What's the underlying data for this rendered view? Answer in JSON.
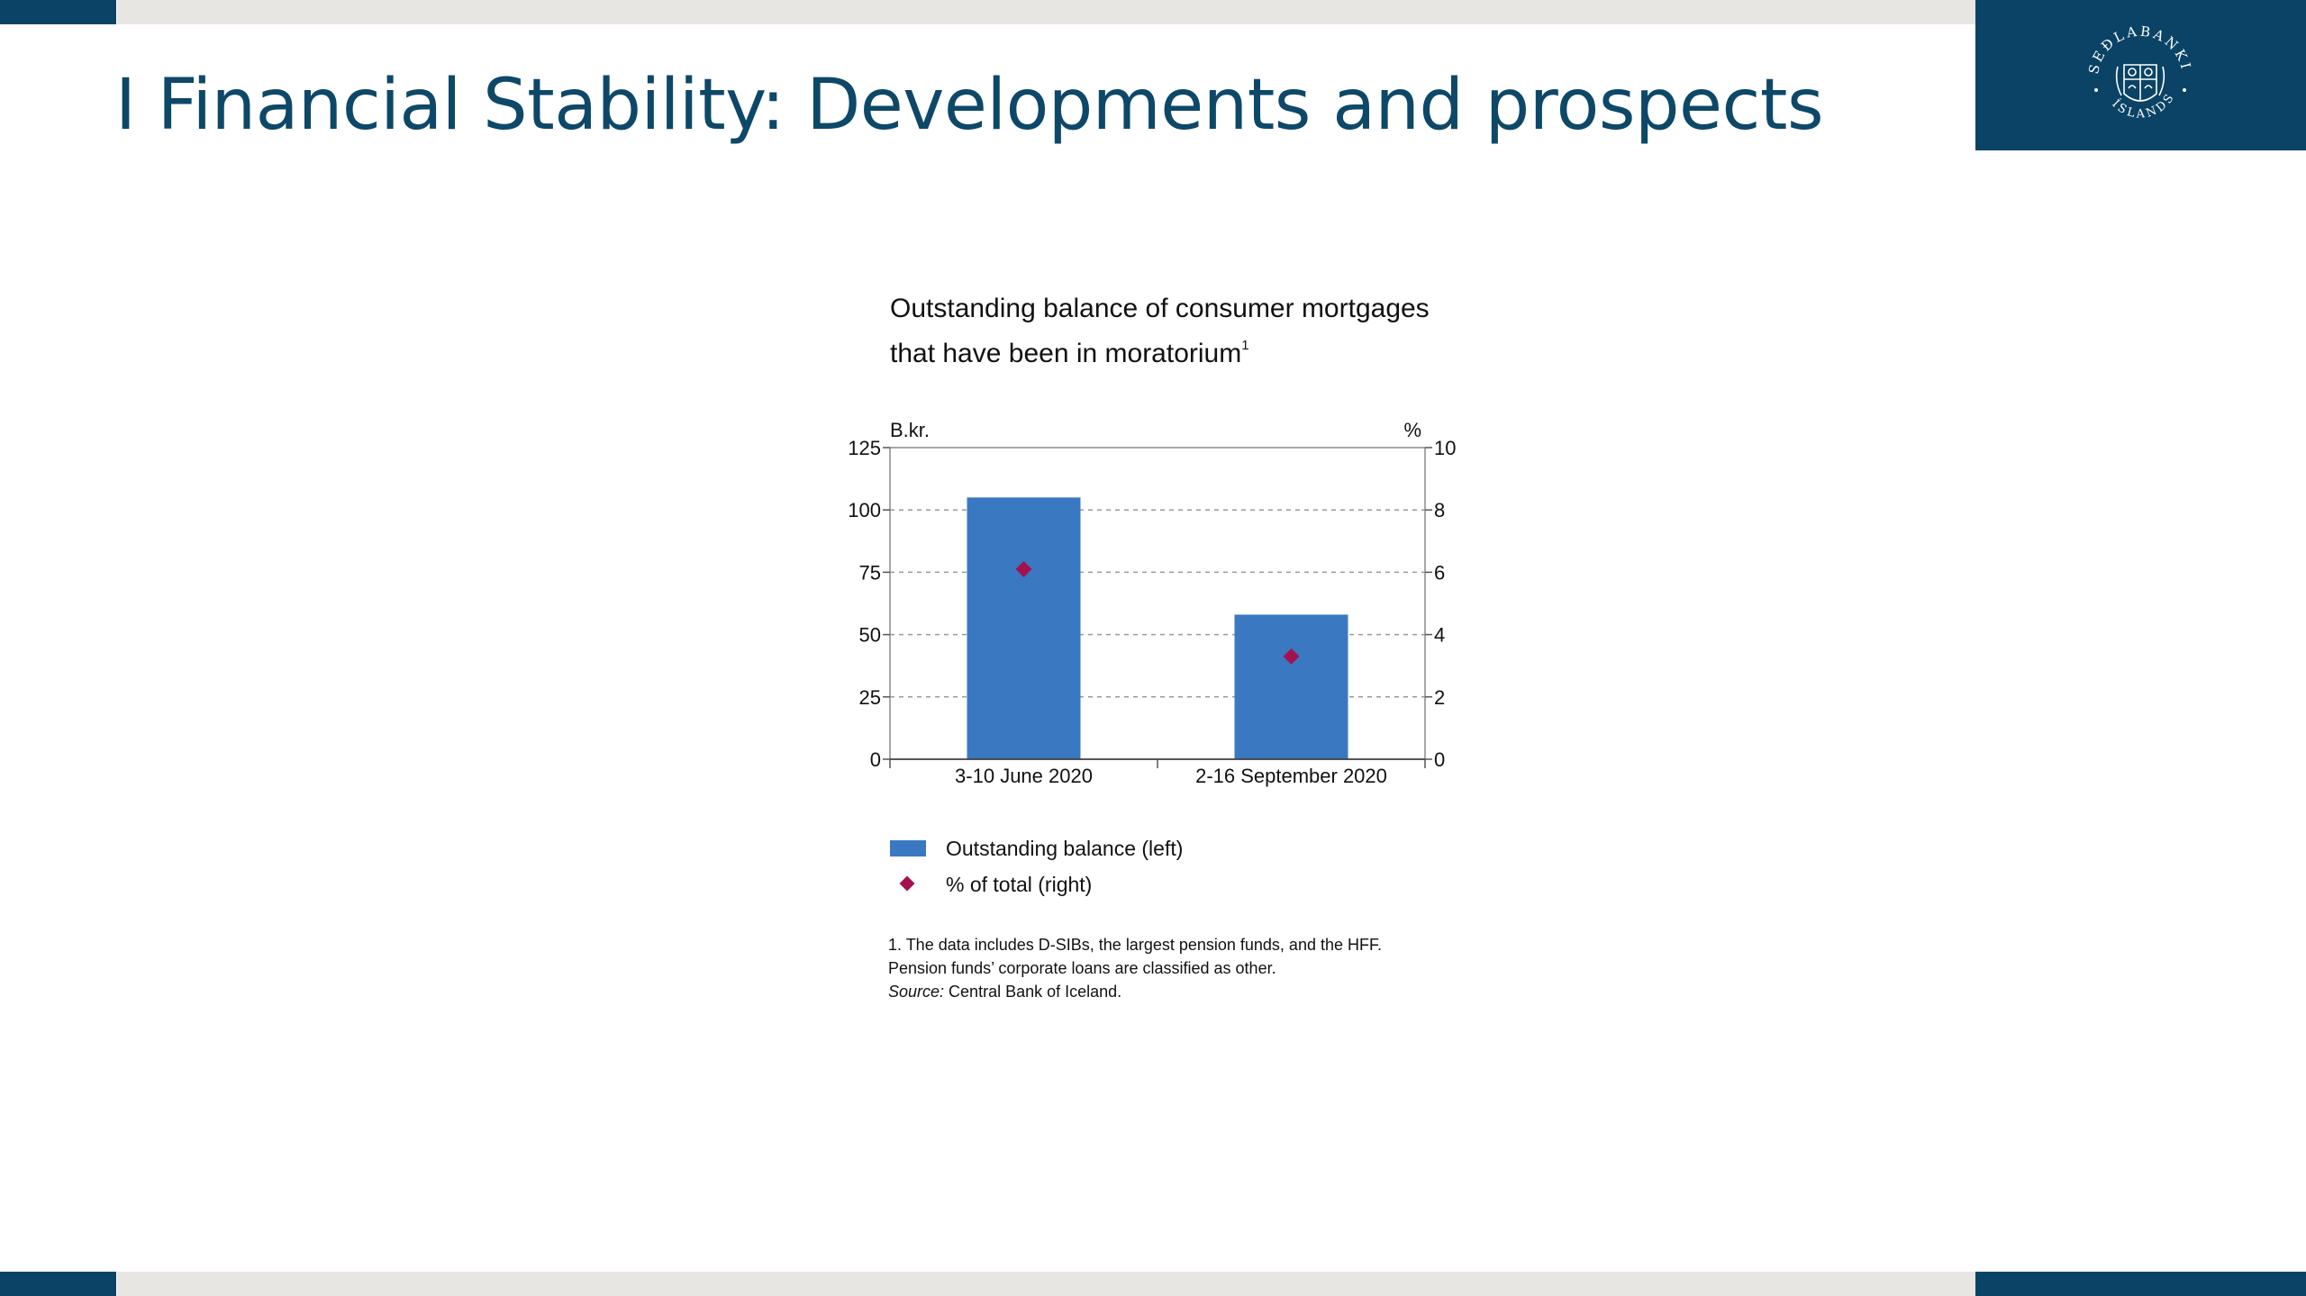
{
  "slide": {
    "title": "I Financial Stability: Developments and prospects"
  },
  "logo": {
    "name": "seal-logo",
    "text_top": "SEÐLABANKI",
    "text_bottom": "ÍSLANDS"
  },
  "colors": {
    "brand_navy": "#0a4365",
    "title_text": "#0d4868",
    "bar_fill": "#3a78c2",
    "marker_fill": "#a3124f",
    "band_gray": "#e8e6e2"
  },
  "chart_data": {
    "type": "bar",
    "title_line1": "Outstanding balance of consumer mortgages",
    "title_line2": "that have been in moratorium",
    "title_superscript": "1",
    "left_axis_unit": "B.kr.",
    "right_axis_unit": "%",
    "categories": [
      "3-10 June 2020",
      "2-16 September 2020"
    ],
    "series": [
      {
        "name": "Outstanding balance (left)",
        "type": "bar",
        "axis": "left",
        "values": [
          105,
          58
        ]
      },
      {
        "name": "% of total (right)",
        "type": "scatter",
        "marker": "diamond",
        "axis": "right",
        "values": [
          6.1,
          3.3
        ]
      }
    ],
    "left_ylim": [
      0,
      125
    ],
    "left_ticks": [
      "0",
      "25",
      "50",
      "75",
      "100",
      "125"
    ],
    "right_ylim": [
      0,
      10
    ],
    "right_ticks": [
      "0",
      "2",
      "4",
      "6",
      "8",
      "10"
    ],
    "grid": "horizontal dashed",
    "legend_position": "bottom-left"
  },
  "notes": {
    "line1": "1. The data includes D-SIBs, the largest pension funds, and the HFF.",
    "line2": "Pension funds’ corporate loans are classified as other.",
    "source_label": "Source:",
    "source_text": " Central Bank of Iceland."
  }
}
